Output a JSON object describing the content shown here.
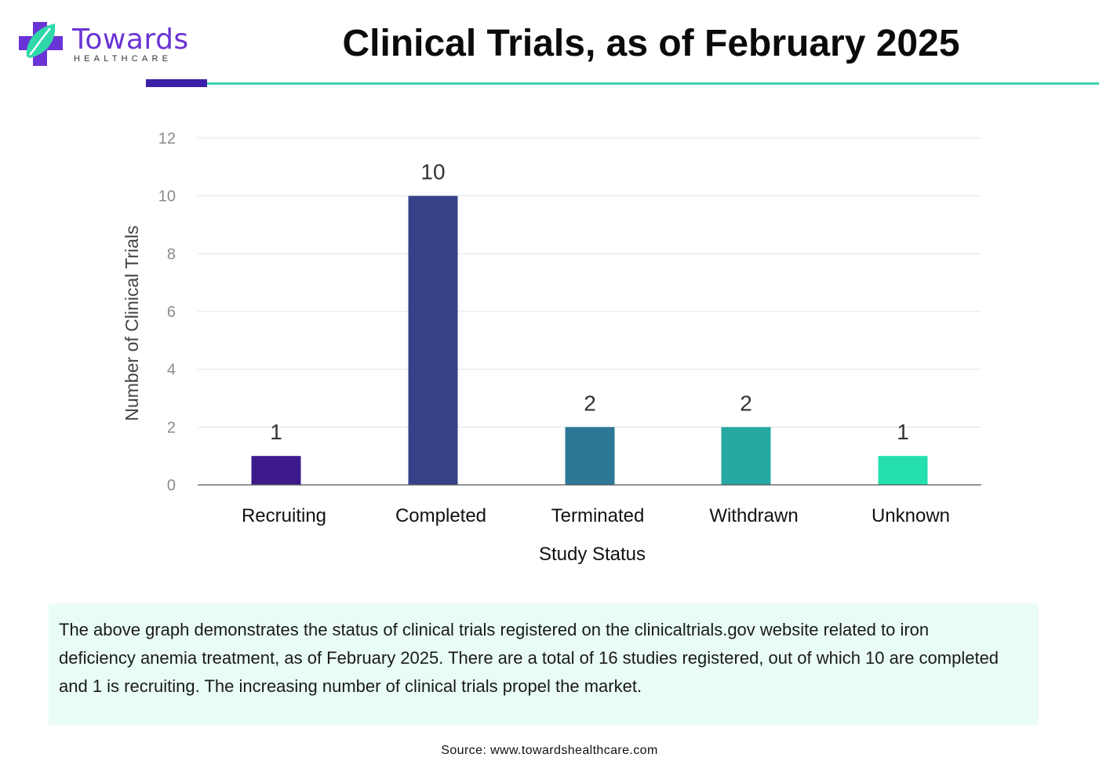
{
  "brand": {
    "name": "Towards",
    "subname": "HEALTHCARE",
    "colors": {
      "purple": "#6a33d6",
      "green": "#2fd7a9",
      "dark": "#3a1fa8",
      "light_rule": "#3ed2ad"
    }
  },
  "title": "Clinical Trials, as of February 2025",
  "chart_data": {
    "type": "bar",
    "categories": [
      "Recruiting",
      "Completed",
      "Terminated",
      "Withdrawn",
      "Unknown"
    ],
    "values": [
      1,
      10,
      2,
      2,
      1
    ],
    "data_labels": [
      "1",
      "10",
      "2",
      "2",
      "1"
    ],
    "bar_colors": [
      "#3d1a8c",
      "#364287",
      "#2d7896",
      "#27a8a2",
      "#25dfae"
    ],
    "xlabel": "Study Status",
    "ylabel": "Number of Clinical Trials",
    "ylim": [
      0,
      12
    ],
    "yticks": [
      0,
      2,
      4,
      6,
      8,
      10,
      12
    ],
    "grid": true,
    "legend": "none"
  },
  "description": "The above graph demonstrates the status of clinical trials registered on the clinicaltrials.gov website related to iron deficiency anemia treatment, as of February 2025. There are a total of 16 studies registered, out of which 10 are completed and 1 is recruiting. The increasing number of clinical trials propel the market.",
  "source": "Source: www.towardshealthcare.com"
}
